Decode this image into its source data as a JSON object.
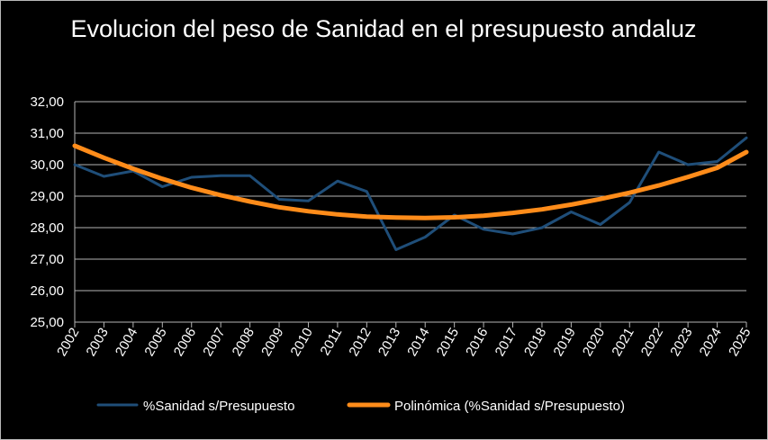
{
  "chart_data": {
    "type": "line",
    "title": "Evolucion del peso de Sanidad en el presupuesto andaluz",
    "categories": [
      "2002",
      "2003",
      "2004",
      "2005",
      "2006",
      "2007",
      "2008",
      "2009",
      "2010",
      "2011",
      "2012",
      "2013",
      "2014",
      "2015",
      "2016",
      "2017",
      "2018",
      "2019",
      "2020",
      "2021",
      "2022",
      "2023",
      "2024",
      "2025"
    ],
    "ylim": [
      25,
      32
    ],
    "yticks": [
      "25,00",
      "26,00",
      "27,00",
      "28,00",
      "29,00",
      "30,00",
      "31,00",
      "32,00"
    ],
    "grid": true,
    "legend_position": "bottom",
    "series": [
      {
        "name": "%Sanidad s/Presupuesto",
        "color": "#1f4e79",
        "values": [
          30.0,
          29.63,
          29.8,
          29.3,
          29.6,
          29.65,
          29.65,
          28.9,
          28.85,
          29.48,
          29.15,
          27.3,
          27.7,
          28.4,
          27.95,
          27.8,
          28.0,
          28.5,
          28.1,
          28.8,
          30.4,
          30.0,
          30.1,
          30.85
        ]
      },
      {
        "name": "Polinómica (%Sanidad s/Presupuesto)",
        "color": "#ff8c1a",
        "values": [
          30.6,
          30.22,
          29.87,
          29.55,
          29.27,
          29.03,
          28.83,
          28.65,
          28.52,
          28.42,
          28.35,
          28.32,
          28.31,
          28.33,
          28.38,
          28.47,
          28.58,
          28.73,
          28.91,
          29.11,
          29.34,
          29.61,
          29.9,
          30.4
        ]
      }
    ]
  }
}
